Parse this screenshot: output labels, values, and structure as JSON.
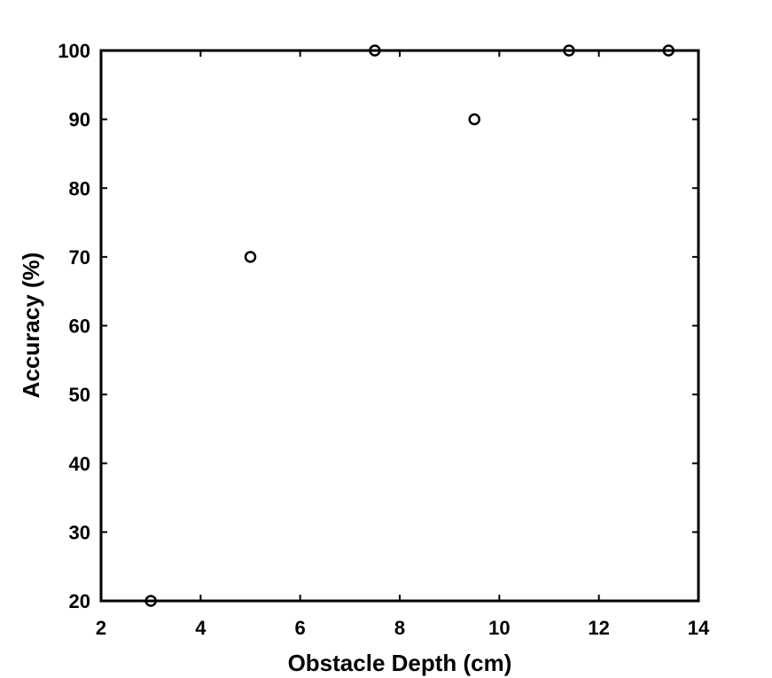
{
  "chart_data": {
    "type": "scatter",
    "title": "",
    "xlabel": "Obstacle Depth (cm)",
    "ylabel": "Accuracy (%)",
    "xlim": [
      2,
      14
    ],
    "ylim": [
      20,
      100
    ],
    "xticks": [
      2,
      4,
      6,
      8,
      10,
      12,
      14
    ],
    "yticks": [
      20,
      30,
      40,
      50,
      60,
      70,
      80,
      90,
      100
    ],
    "grid": false,
    "marker": "open-circle",
    "colors": {
      "marker": "#000000",
      "axes": "#000000"
    },
    "points": [
      {
        "x": 3,
        "y": 20
      },
      {
        "x": 5,
        "y": 70
      },
      {
        "x": 7.5,
        "y": 100
      },
      {
        "x": 9.5,
        "y": 90
      },
      {
        "x": 11.4,
        "y": 100
      },
      {
        "x": 13.4,
        "y": 100
      }
    ]
  }
}
